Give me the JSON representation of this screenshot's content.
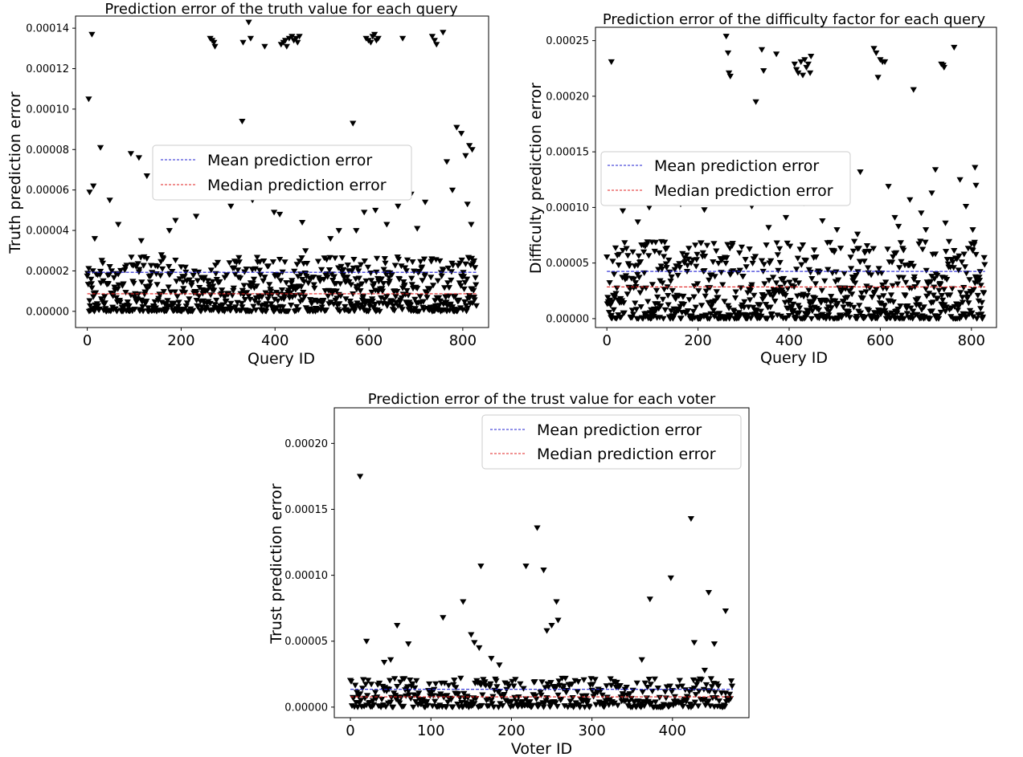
{
  "chart_data": [
    {
      "type": "scatter",
      "title": "Prediction error of the truth value for each query",
      "xlabel": "Query ID",
      "ylabel": "Truth prediction error",
      "xlim": [
        -25,
        855
      ],
      "ylim": [
        -8e-06,
        0.000146
      ],
      "xticks": [
        0,
        200,
        400,
        600,
        800
      ],
      "xtick_labels": [
        "0",
        "200",
        "400",
        "600",
        "800"
      ],
      "yticks": [
        0,
        2e-05,
        4e-05,
        6e-05,
        8e-05,
        0.0001,
        0.00012,
        0.00014
      ],
      "ytick_labels": [
        "0.00000",
        "0.00002",
        "0.00004",
        "0.00006",
        "0.00008",
        "0.00010",
        "0.00012",
        "0.00014"
      ],
      "marker": "triangle-down",
      "grid": false,
      "legend": {
        "position": "center-left"
      },
      "lines": [
        {
          "name": "Mean prediction error",
          "y": 1.93e-05,
          "x_range": [
            0,
            830
          ],
          "color": "#1f1fd0"
        },
        {
          "name": "Median prediction error",
          "y": 8.7e-06,
          "x_range": [
            0,
            830
          ],
          "color": "#e02020"
        }
      ],
      "n_points": 830,
      "bulk_range": [
        0,
        2.7e-05
      ],
      "points": [
        [
          3,
          0.000105
        ],
        [
          10,
          0.000137
        ],
        [
          5,
          5.9e-05
        ],
        [
          13,
          6.2e-05
        ],
        [
          28,
          8.1e-05
        ],
        [
          16,
          3.6e-05
        ],
        [
          48,
          5.5e-05
        ],
        [
          66,
          4.3e-05
        ],
        [
          93,
          7.8e-05
        ],
        [
          110,
          7.6e-05
        ],
        [
          127,
          6.7e-05
        ],
        [
          115,
          3.5e-05
        ],
        [
          158,
          2.8e-05
        ],
        [
          175,
          4e-05
        ],
        [
          188,
          4.5e-05
        ],
        [
          218,
          5.7e-05
        ],
        [
          232,
          4.7e-05
        ],
        [
          248,
          6e-05
        ],
        [
          262,
          0.000135
        ],
        [
          266,
          0.000134
        ],
        [
          270,
          0.000133
        ],
        [
          272,
          0.000131
        ],
        [
          293,
          6.5e-05
        ],
        [
          306,
          5.2e-05
        ],
        [
          330,
          9.4e-05
        ],
        [
          332,
          0.000133
        ],
        [
          344,
          0.000143
        ],
        [
          348,
          0.000135
        ],
        [
          352,
          5.5e-05
        ],
        [
          366,
          5.8e-05
        ],
        [
          378,
          0.000131
        ],
        [
          398,
          4.9e-05
        ],
        [
          410,
          4.8e-05
        ],
        [
          413,
          0.000132
        ],
        [
          418,
          0.000133
        ],
        [
          422,
          0.000134
        ],
        [
          425,
          0.000131
        ],
        [
          430,
          0.000135
        ],
        [
          436,
          0.000136
        ],
        [
          440,
          0.000134
        ],
        [
          445,
          0.000135
        ],
        [
          448,
          0.000133
        ],
        [
          452,
          0.000136
        ],
        [
          458,
          4.4e-05
        ],
        [
          465,
          3e-05
        ],
        [
          518,
          3.6e-05
        ],
        [
          536,
          4e-05
        ],
        [
          566,
          9.3e-05
        ],
        [
          573,
          4e-05
        ],
        [
          590,
          4.9e-05
        ],
        [
          594,
          0.000135
        ],
        [
          599,
          0.000134
        ],
        [
          604,
          0.000133
        ],
        [
          608,
          0.000136
        ],
        [
          612,
          0.000137
        ],
        [
          616,
          0.000134
        ],
        [
          620,
          0.000135
        ],
        [
          614,
          5e-05
        ],
        [
          638,
          4.3e-05
        ],
        [
          662,
          5.2e-05
        ],
        [
          672,
          0.000135
        ],
        [
          690,
          5.8e-05
        ],
        [
          703,
          4.1e-05
        ],
        [
          720,
          5.4e-05
        ],
        [
          735,
          0.000136
        ],
        [
          740,
          0.000134
        ],
        [
          744,
          0.000132
        ],
        [
          758,
          0.000138
        ],
        [
          766,
          7.4e-05
        ],
        [
          778,
          6e-05
        ],
        [
          787,
          9.1e-05
        ],
        [
          797,
          8.8e-05
        ],
        [
          806,
          7.7e-05
        ],
        [
          814,
          8.2e-05
        ],
        [
          820,
          8e-05
        ],
        [
          810,
          5.3e-05
        ],
        [
          818,
          4.3e-05
        ],
        [
          824,
          2.5e-05
        ]
      ]
    },
    {
      "type": "scatter",
      "title": "Prediction error of the difficulty factor for each query",
      "xlabel": "Query ID",
      "ylabel": "Difficulty prediction error",
      "xlim": [
        -25,
        855
      ],
      "ylim": [
        -8e-06,
        0.000262
      ],
      "xticks": [
        0,
        200,
        400,
        600,
        800
      ],
      "xtick_labels": [
        "0",
        "200",
        "400",
        "600",
        "800"
      ],
      "yticks": [
        0,
        5e-05,
        0.0001,
        0.00015,
        0.0002,
        0.00025
      ],
      "ytick_labels": [
        "0.00000",
        "0.00005",
        "0.00010",
        "0.00015",
        "0.00020",
        "0.00025"
      ],
      "marker": "triangle-down",
      "grid": false,
      "legend": {
        "position": "center-left"
      },
      "lines": [
        {
          "name": "Mean prediction error",
          "y": 4.25e-05,
          "x_range": [
            0,
            830
          ],
          "color": "#1f1fd0"
        },
        {
          "name": "Median prediction error",
          "y": 2.85e-05,
          "x_range": [
            0,
            830
          ],
          "color": "#e02020"
        }
      ],
      "n_points": 830,
      "bulk_range": [
        0,
        7e-05
      ],
      "points": [
        [
          10,
          0.000231
        ],
        [
          35,
          9.7e-05
        ],
        [
          68,
          8.7e-05
        ],
        [
          93,
          0.0001
        ],
        [
          162,
          0.000103
        ],
        [
          214,
          9.8e-05
        ],
        [
          262,
          0.000254
        ],
        [
          266,
          0.000239
        ],
        [
          268,
          0.000221
        ],
        [
          271,
          0.000218
        ],
        [
          318,
          0.000101
        ],
        [
          327,
          0.000195
        ],
        [
          340,
          0.000242
        ],
        [
          344,
          0.000223
        ],
        [
          372,
          0.000238
        ],
        [
          412,
          0.000229
        ],
        [
          416,
          0.000224
        ],
        [
          420,
          0.000221
        ],
        [
          426,
          0.000231
        ],
        [
          430,
          0.000219
        ],
        [
          434,
          0.000233
        ],
        [
          438,
          0.000226
        ],
        [
          442,
          0.000229
        ],
        [
          446,
          0.000221
        ],
        [
          448,
          0.000236
        ],
        [
          432,
          0.000104
        ],
        [
          556,
          0.000132
        ],
        [
          586,
          0.000243
        ],
        [
          591,
          0.000239
        ],
        [
          595,
          0.000217
        ],
        [
          600,
          0.000233
        ],
        [
          605,
          0.000231
        ],
        [
          610,
          0.000231
        ],
        [
          618,
          0.000119
        ],
        [
          632,
          9.1e-05
        ],
        [
          665,
          0.000107
        ],
        [
          673,
          0.000206
        ],
        [
          690,
          9.5e-05
        ],
        [
          713,
          0.000113
        ],
        [
          721,
          0.000134
        ],
        [
          734,
          0.000229
        ],
        [
          738,
          0.000228
        ],
        [
          740,
          0.000226
        ],
        [
          762,
          0.000244
        ],
        [
          775,
          0.000125
        ],
        [
          788,
          0.000101
        ],
        [
          808,
          0.000136
        ],
        [
          810,
          0.00012
        ],
        [
          330,
          0.000107
        ],
        [
          355,
          8.2e-05
        ],
        [
          393,
          9.1e-05
        ],
        [
          473,
          8.8e-05
        ],
        [
          505,
          8e-05
        ],
        [
          550,
          7.6e-05
        ],
        [
          640,
          8.3e-05
        ],
        [
          700,
          8e-05
        ],
        [
          743,
          8.6e-05
        ],
        [
          803,
          8e-05
        ]
      ]
    },
    {
      "type": "scatter",
      "title": "Prediction error of the trust value for each voter",
      "xlabel": "Voter ID",
      "ylabel": "Trust prediction error",
      "xlim": [
        -20,
        495
      ],
      "ylim": [
        -8e-06,
        0.000227
      ],
      "xticks": [
        0,
        100,
        200,
        300,
        400
      ],
      "xtick_labels": [
        "0",
        "100",
        "200",
        "300",
        "400"
      ],
      "yticks": [
        0,
        5e-05,
        0.0001,
        0.00015,
        0.0002
      ],
      "ytick_labels": [
        "0.00000",
        "0.00005",
        "0.00010",
        "0.00015",
        "0.00020"
      ],
      "marker": "triangle-down",
      "grid": false,
      "legend": {
        "position": "top-right"
      },
      "lines": [
        {
          "name": "Mean prediction error",
          "y": 1.35e-05,
          "x_range": [
            0,
            475
          ],
          "color": "#1f1fd0"
        },
        {
          "name": "Median prediction error",
          "y": 7.8e-06,
          "x_range": [
            0,
            475
          ],
          "color": "#e02020"
        }
      ],
      "n_points": 475,
      "bulk_range": [
        0,
        2.2e-05
      ],
      "points": [
        [
          12,
          0.000175
        ],
        [
          20,
          5e-05
        ],
        [
          42,
          3.4e-05
        ],
        [
          50,
          3.6e-05
        ],
        [
          58,
          6.2e-05
        ],
        [
          72,
          4.8e-05
        ],
        [
          115,
          6.8e-05
        ],
        [
          140,
          8e-05
        ],
        [
          150,
          5.5e-05
        ],
        [
          154,
          4.9e-05
        ],
        [
          160,
          4.5e-05
        ],
        [
          162,
          0.000107
        ],
        [
          175,
          3.7e-05
        ],
        [
          185,
          3.2e-05
        ],
        [
          218,
          0.000107
        ],
        [
          232,
          0.000136
        ],
        [
          240,
          0.000104
        ],
        [
          244,
          5.8e-05
        ],
        [
          250,
          6.2e-05
        ],
        [
          256,
          8e-05
        ],
        [
          258,
          6.6e-05
        ],
        [
          362,
          3.6e-05
        ],
        [
          372,
          8.2e-05
        ],
        [
          398,
          9.8e-05
        ],
        [
          423,
          0.000143
        ],
        [
          427,
          4.9e-05
        ],
        [
          440,
          2.8e-05
        ],
        [
          445,
          8.7e-05
        ],
        [
          452,
          4.8e-05
        ],
        [
          466,
          7.3e-05
        ]
      ]
    }
  ]
}
